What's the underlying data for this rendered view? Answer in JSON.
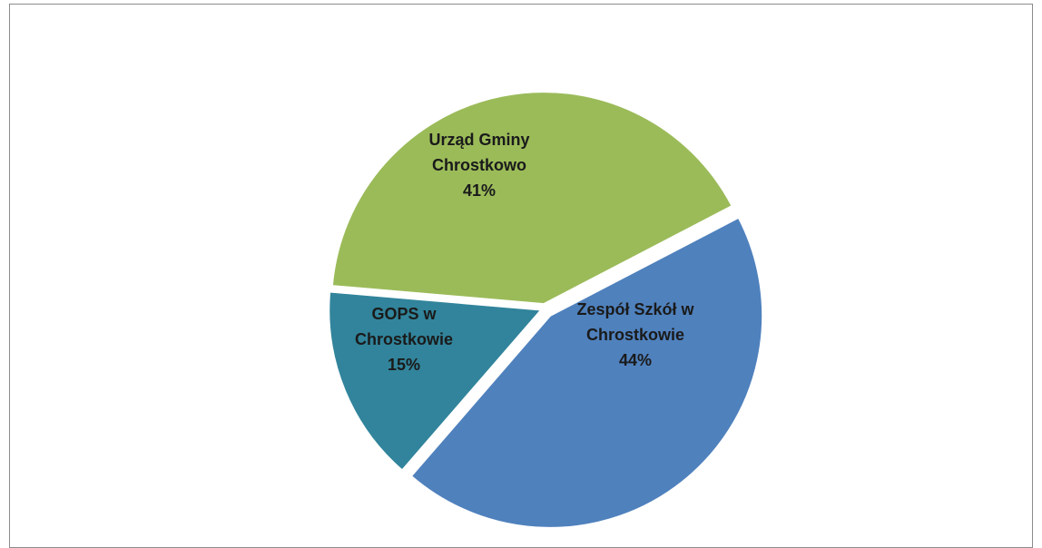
{
  "chart_data": {
    "type": "pie",
    "title": "",
    "slices": [
      {
        "label_lines": [
          "Zespół Szkół w",
          "Chrostkowie"
        ],
        "percent_label": "44%",
        "value": 44,
        "color": "#4f81bd"
      },
      {
        "label_lines": [
          "GOPS w",
          "Chrostkowie"
        ],
        "percent_label": "15%",
        "value": 15,
        "color": "#31849b"
      },
      {
        "label_lines": [
          "Urząd Gminy",
          "Chrostkowo"
        ],
        "percent_label": "41%",
        "value": 41,
        "color": "#9bbb59"
      }
    ],
    "legend": "none",
    "exploded": true
  }
}
